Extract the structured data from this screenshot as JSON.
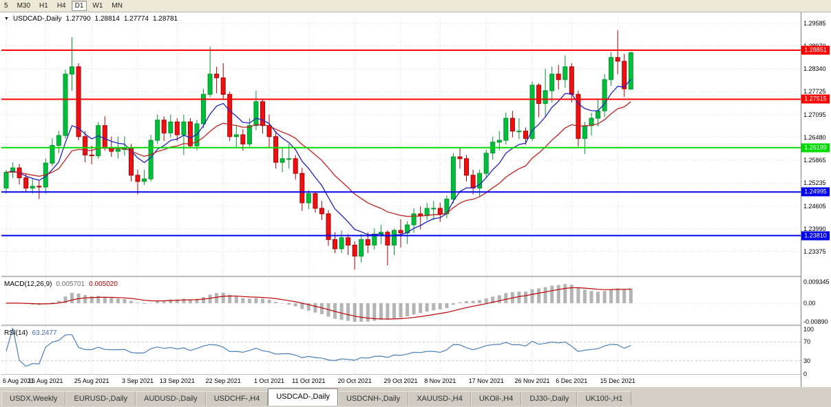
{
  "toolbar": {
    "timeframes": [
      {
        "label": "5",
        "active": false
      },
      {
        "label": "M30",
        "active": false
      },
      {
        "label": "H1",
        "active": false
      },
      {
        "label": "H4",
        "active": false
      },
      {
        "label": "D1",
        "active": true
      },
      {
        "label": "W1",
        "active": false
      },
      {
        "label": "MN",
        "active": false
      }
    ]
  },
  "chart_header": {
    "symbol_label": "USDCAD-,Daily",
    "open": "1.27790",
    "high": "1.28814",
    "low": "1.27774",
    "close": "1.28781"
  },
  "price_axis": {
    "ticks": [
      "1.29585",
      "1.28970",
      "1.28340",
      "1.27725",
      "1.27095",
      "1.26480",
      "1.25865",
      "1.25235",
      "1.24605",
      "1.23990",
      "1.23375"
    ]
  },
  "levels": [
    {
      "price": 1.28851,
      "label": "1.28851",
      "color": "#FF0000"
    },
    {
      "price": 1.27515,
      "label": "1.27515",
      "color": "#FF0000"
    },
    {
      "price": 1.26199,
      "label": "1.26199",
      "color": "#00DC00"
    },
    {
      "price": 1.24995,
      "label": "1.24995",
      "color": "#0000F0"
    },
    {
      "price": 1.2381,
      "label": "1.23810",
      "color": "#0000F0"
    }
  ],
  "x_labels": [
    {
      "i": 0,
      "text": "6 Aug 2021"
    },
    {
      "i": 6,
      "text": "16 Aug 2021"
    },
    {
      "i": 13,
      "text": "25 Aug 2021"
    },
    {
      "i": 20,
      "text": "3 Sep 2021"
    },
    {
      "i": 26,
      "text": "13 Sep 2021"
    },
    {
      "i": 33,
      "text": "22 Sep 2021"
    },
    {
      "i": 40,
      "text": "1 Oct 2021"
    },
    {
      "i": 46,
      "text": "11 Oct 2021"
    },
    {
      "i": 53,
      "text": "20 Oct 2021"
    },
    {
      "i": 60,
      "text": "29 Oct 2021"
    },
    {
      "i": 66,
      "text": "8 Nov 2021"
    },
    {
      "i": 73,
      "text": "17 Nov 2021"
    },
    {
      "i": 80,
      "text": "26 Nov 2021"
    },
    {
      "i": 86,
      "text": "6 Dec 2021"
    },
    {
      "i": 93,
      "text": "15 Dec 2021"
    }
  ],
  "macd_panel": {
    "label": "MACD(12,26,9)",
    "main_value": "0.005701",
    "signal_value": "0.005020",
    "axis_ticks": [
      "0.009345",
      "0.00",
      "-0.00890"
    ]
  },
  "rsi_panel": {
    "label": "RSI(14)",
    "value": "63.2477",
    "axis_ticks": [
      "100",
      "70",
      "30",
      "0"
    ],
    "dashed_levels": [
      70,
      30
    ]
  },
  "tabs": [
    {
      "label": "USDX,Weekly",
      "active": false
    },
    {
      "label": "EURUSD-,Daily",
      "active": false
    },
    {
      "label": "AUDUSD-,Daily",
      "active": false
    },
    {
      "label": "USDCHF-,H4",
      "active": false
    },
    {
      "label": "USDCAD-,Daily",
      "active": true
    },
    {
      "label": "USDCNH-,Daily",
      "active": false
    },
    {
      "label": "XAUUSD-,H4",
      "active": false
    },
    {
      "label": "UKOil-,H4",
      "active": false
    },
    {
      "label": "DJ30-,Daily",
      "active": false
    },
    {
      "label": "UK100-,H1",
      "active": false
    }
  ],
  "colors": {
    "bull_fill": "#00BE3C",
    "bull_stroke": "#009628",
    "bear_fill": "#EE1111",
    "bear_stroke": "#A80000",
    "ma_fast": "#2020C0",
    "ma_slow": "#C02020",
    "macd_hist": "#B4B4B4",
    "macd_signal": "#C00000",
    "rsi_line": "#4A7EBB",
    "grid": "#DCDCDC"
  },
  "chart_data": {
    "type": "candlestick",
    "title": "USDCAD-,Daily",
    "current_bar_ohlc": [
      1.2779,
      1.28814,
      1.27774,
      1.28781
    ],
    "y_range": [
      1.2274,
      1.2973
    ],
    "horizontal_levels": [
      1.28851,
      1.27515,
      1.26199,
      1.24995,
      1.2381
    ],
    "moving_averages": [
      {
        "color": "blue",
        "period": 8
      },
      {
        "color": "red",
        "period": 20
      }
    ],
    "indicators": [
      {
        "name": "MACD",
        "params": "12,26,9",
        "values": [
          0.005701,
          0.00502
        ],
        "axis": [
          0.009345,
          0.0,
          -0.0089
        ]
      },
      {
        "name": "RSI",
        "params": "14",
        "value": 63.2477,
        "levels": [
          70,
          30
        ]
      }
    ],
    "candles": [
      [
        1.251,
        1.256,
        1.2495,
        1.2553
      ],
      [
        1.2553,
        1.258,
        1.2537,
        1.2565
      ],
      [
        1.2565,
        1.2575,
        1.252,
        1.2538
      ],
      [
        1.2538,
        1.255,
        1.25,
        1.251
      ],
      [
        1.251,
        1.2535,
        1.2495,
        1.2515
      ],
      [
        1.2515,
        1.253,
        1.248,
        1.2513
      ],
      [
        1.2513,
        1.259,
        1.2495,
        1.2578
      ],
      [
        1.2578,
        1.2645,
        1.257,
        1.2626
      ],
      [
        1.2626,
        1.2665,
        1.2605,
        1.2653
      ],
      [
        1.2653,
        1.2832,
        1.2645,
        1.282
      ],
      [
        1.282,
        1.292,
        1.2775,
        1.284
      ],
      [
        1.284,
        1.285,
        1.264,
        1.265
      ],
      [
        1.265,
        1.2665,
        1.258,
        1.26
      ],
      [
        1.26,
        1.2625,
        1.2575,
        1.2598
      ],
      [
        1.2598,
        1.269,
        1.259,
        1.268
      ],
      [
        1.268,
        1.2705,
        1.2612,
        1.262
      ],
      [
        1.262,
        1.265,
        1.2595,
        1.261
      ],
      [
        1.261,
        1.265,
        1.259,
        1.2615
      ],
      [
        1.2615,
        1.265,
        1.2598,
        1.262
      ],
      [
        1.262,
        1.263,
        1.2528,
        1.2545
      ],
      [
        1.2545,
        1.256,
        1.2493,
        1.2528
      ],
      [
        1.2528,
        1.256,
        1.2518,
        1.2535
      ],
      [
        1.2535,
        1.2655,
        1.2528,
        1.264
      ],
      [
        1.264,
        1.271,
        1.263,
        1.2695
      ],
      [
        1.2695,
        1.2705,
        1.2638,
        1.266
      ],
      [
        1.266,
        1.271,
        1.2648,
        1.269
      ],
      [
        1.269,
        1.27,
        1.2638,
        1.2655
      ],
      [
        1.2655,
        1.271,
        1.26,
        1.269
      ],
      [
        1.269,
        1.27,
        1.2618,
        1.2625
      ],
      [
        1.2625,
        1.2695,
        1.2613,
        1.2685
      ],
      [
        1.2685,
        1.278,
        1.2673,
        1.2765
      ],
      [
        1.2765,
        1.2895,
        1.2758,
        1.282
      ],
      [
        1.282,
        1.284,
        1.2768,
        1.281
      ],
      [
        1.281,
        1.285,
        1.2753,
        1.2765
      ],
      [
        1.2765,
        1.2772,
        1.2638,
        1.265
      ],
      [
        1.265,
        1.268,
        1.2618,
        1.2655
      ],
      [
        1.2655,
        1.267,
        1.2612,
        1.263
      ],
      [
        1.263,
        1.27,
        1.2623,
        1.268
      ],
      [
        1.268,
        1.2775,
        1.2668,
        1.2745
      ],
      [
        1.2745,
        1.2752,
        1.2658,
        1.268
      ],
      [
        1.268,
        1.271,
        1.2618,
        1.265
      ],
      [
        1.265,
        1.2665,
        1.2563,
        1.258
      ],
      [
        1.258,
        1.262,
        1.2553,
        1.259
      ],
      [
        1.259,
        1.263,
        1.2563,
        1.259
      ],
      [
        1.259,
        1.26,
        1.2533,
        1.255
      ],
      [
        1.255,
        1.2565,
        1.2448,
        1.247
      ],
      [
        1.247,
        1.2505,
        1.2453,
        1.2495
      ],
      [
        1.2495,
        1.25,
        1.2443,
        1.2455
      ],
      [
        1.2455,
        1.2475,
        1.2423,
        1.244
      ],
      [
        1.244,
        1.245,
        1.2353,
        1.237
      ],
      [
        1.237,
        1.239,
        1.2333,
        1.2345
      ],
      [
        1.2345,
        1.2395,
        1.2333,
        1.2375
      ],
      [
        1.2375,
        1.2385,
        1.2328,
        1.2355
      ],
      [
        1.2355,
        1.2365,
        1.2288,
        1.2325
      ],
      [
        1.2325,
        1.2385,
        1.2308,
        1.237
      ],
      [
        1.237,
        1.239,
        1.2333,
        1.2355
      ],
      [
        1.2355,
        1.24,
        1.2343,
        1.2385
      ],
      [
        1.2385,
        1.241,
        1.2358,
        1.239
      ],
      [
        1.239,
        1.2395,
        1.23,
        1.2355
      ],
      [
        1.2355,
        1.24,
        1.2328,
        1.2395
      ],
      [
        1.2395,
        1.2425,
        1.2348,
        1.2388
      ],
      [
        1.2388,
        1.242,
        1.2358,
        1.241
      ],
      [
        1.241,
        1.2455,
        1.2388,
        1.244
      ],
      [
        1.244,
        1.246,
        1.2398,
        1.2435
      ],
      [
        1.2435,
        1.247,
        1.2423,
        1.2455
      ],
      [
        1.2455,
        1.2475,
        1.2423,
        1.2455
      ],
      [
        1.2455,
        1.247,
        1.2418,
        1.244
      ],
      [
        1.244,
        1.249,
        1.2428,
        1.248
      ],
      [
        1.248,
        1.2605,
        1.2468,
        1.2595
      ],
      [
        1.2595,
        1.262,
        1.2563,
        1.259
      ],
      [
        1.259,
        1.26,
        1.2528,
        1.2545
      ],
      [
        1.2545,
        1.256,
        1.2493,
        1.251
      ],
      [
        1.251,
        1.256,
        1.2488,
        1.255
      ],
      [
        1.255,
        1.2615,
        1.2538,
        1.2605
      ],
      [
        1.2605,
        1.265,
        1.2588,
        1.2635
      ],
      [
        1.2635,
        1.2665,
        1.2613,
        1.264
      ],
      [
        1.264,
        1.2715,
        1.2628,
        1.27
      ],
      [
        1.27,
        1.272,
        1.2648,
        1.2665
      ],
      [
        1.2665,
        1.27,
        1.2643,
        1.2665
      ],
      [
        1.2665,
        1.2675,
        1.2628,
        1.2645
      ],
      [
        1.2645,
        1.28,
        1.2638,
        1.279
      ],
      [
        1.279,
        1.2795,
        1.2703,
        1.274
      ],
      [
        1.274,
        1.2835,
        1.2703,
        1.2775
      ],
      [
        1.2775,
        1.284,
        1.2743,
        1.282
      ],
      [
        1.282,
        1.2845,
        1.2778,
        1.2805
      ],
      [
        1.2805,
        1.287,
        1.2783,
        1.284
      ],
      [
        1.284,
        1.285,
        1.2743,
        1.2765
      ],
      [
        1.2765,
        1.2775,
        1.2623,
        1.2645
      ],
      [
        1.2645,
        1.269,
        1.2603,
        1.268
      ],
      [
        1.268,
        1.2715,
        1.2653,
        1.27
      ],
      [
        1.27,
        1.275,
        1.2678,
        1.272
      ],
      [
        1.272,
        1.282,
        1.2703,
        1.2805
      ],
      [
        1.2805,
        1.288,
        1.2788,
        1.2865
      ],
      [
        1.2865,
        1.2939,
        1.282,
        1.2855
      ],
      [
        1.2855,
        1.2875,
        1.2758,
        1.278
      ],
      [
        1.2779,
        1.28814,
        1.27774,
        1.28781
      ]
    ]
  }
}
